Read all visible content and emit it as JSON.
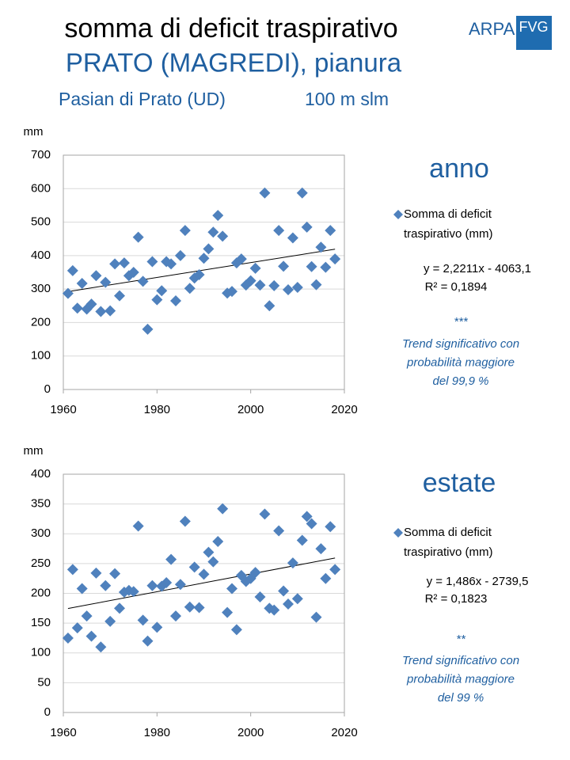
{
  "header": {
    "title": "somma di deficit traspirativo",
    "subtitle": "PRATO (MAGREDI), pianura",
    "station": "Pasian di Prato (UD)",
    "altitude": "100 m slm",
    "logo": {
      "left": "ARPA",
      "right": "FVG"
    }
  },
  "chart_data": [
    {
      "type": "scatter",
      "title": "anno",
      "ylabel": "mm",
      "x": [
        1961,
        1962,
        1963,
        1964,
        1965,
        1966,
        1967,
        1968,
        1969,
        1970,
        1971,
        1972,
        1973,
        1974,
        1975,
        1976,
        1977,
        1978,
        1979,
        1980,
        1981,
        1982,
        1983,
        1984,
        1985,
        1986,
        1987,
        1988,
        1989,
        1990,
        1991,
        1992,
        1993,
        1994,
        1995,
        1996,
        1997,
        1998,
        1999,
        2000,
        2001,
        2002,
        2003,
        2004,
        2005,
        2006,
        2007,
        2008,
        2009,
        2010,
        2011,
        2012,
        2013,
        2014,
        2015,
        2016,
        2017,
        2018
      ],
      "series": [
        {
          "name": "Somma di deficit traspirativo (mm)",
          "color": "#4f81bd",
          "values": [
            287,
            355,
            243,
            317,
            240,
            255,
            340,
            233,
            320,
            235,
            375,
            280,
            378,
            340,
            350,
            455,
            323,
            180,
            382,
            268,
            295,
            382,
            375,
            265,
            400,
            475,
            302,
            333,
            343,
            392,
            420,
            470,
            520,
            458,
            288,
            293,
            378,
            390,
            312,
            325,
            362,
            312,
            587,
            250,
            310,
            475,
            368,
            298,
            453,
            305,
            587,
            485,
            367,
            313,
            425,
            365,
            475,
            390
          ]
        }
      ],
      "trendline": {
        "slope": 2.2211,
        "intercept": -4063.1,
        "equation": "y = 2,2211x - 4063,1",
        "r2_label": "R² = 0,1894"
      },
      "significance": "***",
      "note": [
        "Trend significativo con",
        "probabilità maggiore",
        "del 99,9 %"
      ],
      "xlim": [
        1960,
        2020
      ],
      "xticks": [
        1960,
        1980,
        2000,
        2020
      ],
      "ylim": [
        0,
        700
      ],
      "yticks": [
        0,
        100,
        200,
        300,
        400,
        500,
        600,
        700
      ],
      "grid": true
    },
    {
      "type": "scatter",
      "title": "estate",
      "ylabel": "mm",
      "x": [
        1961,
        1962,
        1963,
        1964,
        1965,
        1966,
        1967,
        1968,
        1969,
        1970,
        1971,
        1972,
        1973,
        1974,
        1975,
        1976,
        1977,
        1978,
        1979,
        1980,
        1981,
        1982,
        1983,
        1984,
        1985,
        1986,
        1987,
        1988,
        1989,
        1990,
        1991,
        1992,
        1993,
        1994,
        1995,
        1996,
        1997,
        1998,
        1999,
        2000,
        2001,
        2002,
        2003,
        2004,
        2005,
        2006,
        2007,
        2008,
        2009,
        2010,
        2011,
        2012,
        2013,
        2014,
        2015,
        2016,
        2017,
        2018
      ],
      "series": [
        {
          "name": "Somma di deficit traspirativo (mm)",
          "color": "#4f81bd",
          "values": [
            125,
            240,
            142,
            208,
            162,
            128,
            234,
            110,
            213,
            153,
            233,
            175,
            202,
            205,
            203,
            313,
            155,
            120,
            213,
            143,
            212,
            218,
            257,
            162,
            215,
            321,
            177,
            244,
            176,
            232,
            269,
            253,
            287,
            342,
            168,
            208,
            139,
            230,
            220,
            225,
            235,
            194,
            333,
            175,
            172,
            305,
            204,
            182,
            251,
            191,
            289,
            329,
            317,
            160,
            275,
            225,
            312,
            240
          ]
        }
      ],
      "trendline": {
        "slope": 1.486,
        "intercept": -2739.5,
        "equation": "y = 1,486x - 2739,5",
        "r2_label": "R² = 0,1823"
      },
      "significance": "**",
      "note": [
        "Trend significativo con",
        "probabilità maggiore",
        "del 99 %"
      ],
      "xlim": [
        1960,
        2020
      ],
      "xticks": [
        1960,
        1980,
        2000,
        2020
      ],
      "ylim": [
        0,
        400
      ],
      "yticks": [
        0,
        50,
        100,
        150,
        200,
        250,
        300,
        350,
        400
      ],
      "grid": true
    }
  ]
}
